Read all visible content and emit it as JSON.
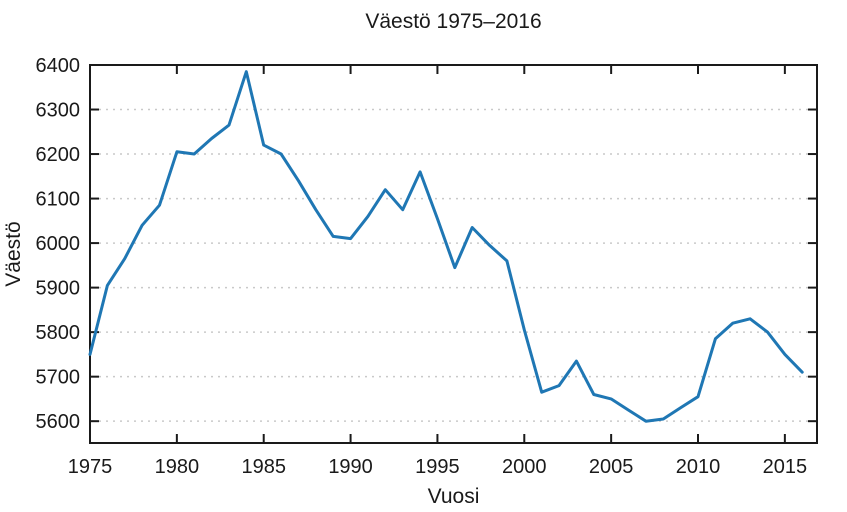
{
  "chart_data": {
    "type": "line",
    "title": "Väestö 1975–2016",
    "xlabel": "Vuosi",
    "ylabel": "Väestö",
    "x": [
      1975,
      1976,
      1977,
      1978,
      1979,
      1980,
      1981,
      1982,
      1983,
      1984,
      1985,
      1986,
      1987,
      1988,
      1989,
      1990,
      1991,
      1992,
      1993,
      1994,
      1995,
      1996,
      1997,
      1998,
      1999,
      2000,
      2001,
      2002,
      2003,
      2004,
      2005,
      2006,
      2007,
      2008,
      2009,
      2010,
      2011,
      2012,
      2013,
      2014,
      2015,
      2016
    ],
    "values": [
      5750,
      5905,
      5965,
      6040,
      6085,
      6205,
      6200,
      6235,
      6265,
      6385,
      6220,
      6200,
      6140,
      6075,
      6015,
      6010,
      6060,
      6120,
      6075,
      6160,
      6055,
      5945,
      6035,
      5995,
      5960,
      5805,
      5665,
      5680,
      5735,
      5660,
      5650,
      5625,
      5600,
      5605,
      5630,
      5655,
      5785,
      5820,
      5830,
      5800,
      5750,
      5710
    ],
    "xticks": [
      1975,
      1980,
      1985,
      1990,
      1995,
      2000,
      2005,
      2010,
      2015
    ],
    "yticks": [
      5600,
      5700,
      5800,
      5900,
      6000,
      6100,
      6200,
      6300,
      6400
    ],
    "xlim": [
      1975,
      2016.85
    ],
    "ylim": [
      5551,
      6400
    ],
    "grid": "horizontal-dotted",
    "legend": "none",
    "line_color": "#1f77b4",
    "axis_color": "#1a1a1a",
    "grid_color": "#c9c9c9",
    "background": "#ffffff"
  }
}
